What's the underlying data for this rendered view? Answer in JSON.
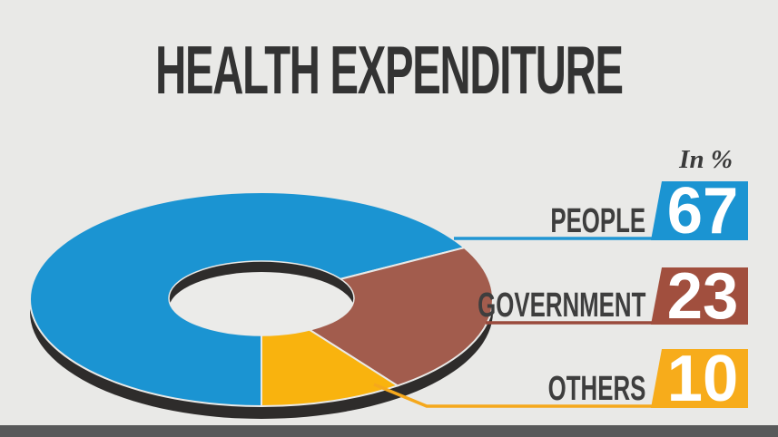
{
  "title": "HEALTH EXPENDITURE",
  "unit_label": "In %",
  "chart_data": {
    "type": "pie",
    "donut": true,
    "style": "3d",
    "title": "HEALTH EXPENDITURE",
    "unit": "In %",
    "categories": [
      "PEOPLE",
      "GOVERNMENT",
      "OTHERS"
    ],
    "values": [
      67,
      23,
      10
    ],
    "colors": [
      "#1B94D2",
      "#A25C4D",
      "#F9B30E"
    ],
    "start_angle_deg": 270,
    "direction": "clockwise",
    "legend_position": "right"
  },
  "legend": {
    "items": [
      {
        "label": "PEOPLE",
        "value": "67",
        "badge_color": "#1B94D2",
        "line_color": "#2196D3"
      },
      {
        "label": "GOVERNMENT",
        "value": "23",
        "badge_color": "#A14F3E",
        "line_color": "#9A4A3C"
      },
      {
        "label": "OTHERS",
        "value": "10",
        "badge_color": "#F7AC1B",
        "line_color": "#F5A81C"
      }
    ]
  },
  "colors": {
    "background": "#E9E9E7",
    "title_text": "#333333",
    "label_text": "#3E3E3E",
    "value_text": "#FFFFFF",
    "rim": "#2E2C2B",
    "hole_fill": "#EBEBE9",
    "bottom_bar": "#58595A"
  }
}
